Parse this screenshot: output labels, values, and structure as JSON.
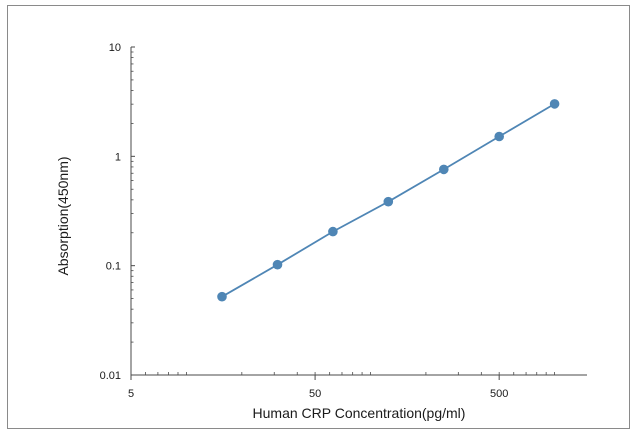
{
  "chart_data": {
    "type": "line",
    "title": "",
    "xlabel": "Human CRP Concentration(pg/ml)",
    "ylabel": "Absorption(450nm)",
    "xscale": "log",
    "yscale": "log",
    "xlim": [
      5,
      1500
    ],
    "ylim": [
      0.01,
      10
    ],
    "x_tick_labels": [
      "5",
      "50",
      "500"
    ],
    "y_tick_labels": [
      "10",
      "1",
      "0.1",
      "0.01"
    ],
    "grid": false,
    "legend": "none",
    "series": [
      {
        "x": [
          15.6,
          31.25,
          62.5,
          125,
          250,
          500,
          1000
        ],
        "y": [
          0.052,
          0.102,
          0.205,
          0.385,
          0.76,
          1.52,
          3.02
        ],
        "color": "#4f86b5"
      }
    ]
  }
}
